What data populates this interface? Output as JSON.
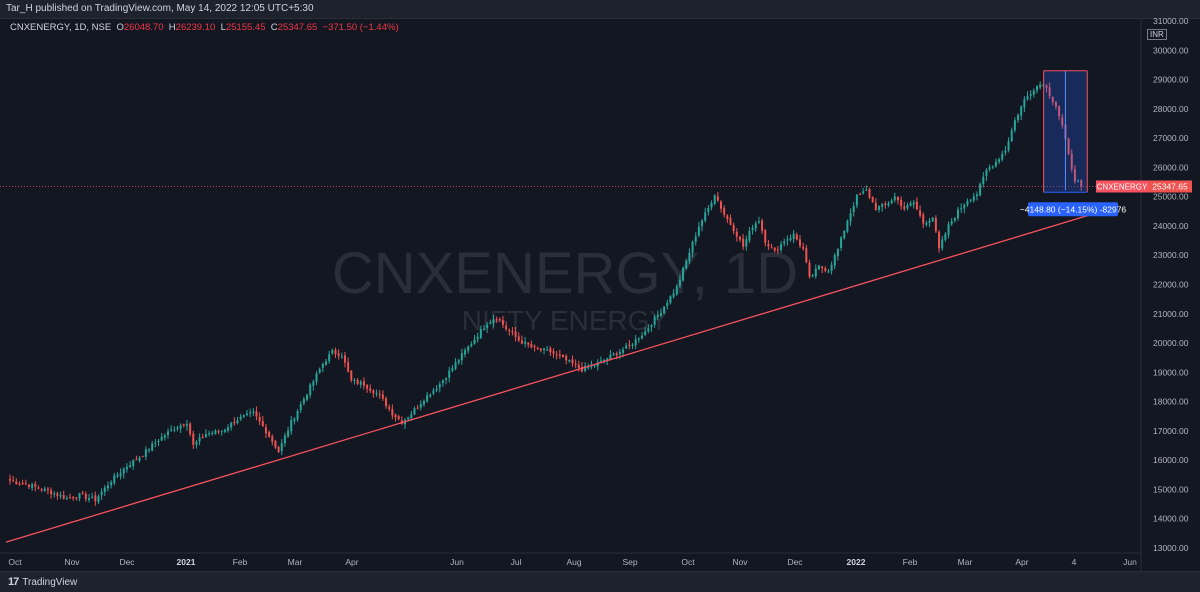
{
  "header": {
    "publisher": "Tar_H published on TradingView.com, May 14, 2022 12:05 UTC+5:30"
  },
  "legend": {
    "symbol": "CNXENERGY, 1D, NSE",
    "o_label": "O",
    "o": "26048.70",
    "h_label": "H",
    "h": "26239.10",
    "l_label": "L",
    "l": "25155.45",
    "c_label": "C",
    "c": "25347.65",
    "change": "−371.50 (−1.44%)"
  },
  "watermark": {
    "title": "CNXENERGY, 1D",
    "subtitle": "NIFTY ENERGY"
  },
  "footer": {
    "brand": "TradingView"
  },
  "colors": {
    "up": "#26a69a",
    "down": "#ef5350",
    "trend": "#f7525f",
    "measure": "#2962ff",
    "bg": "#131722"
  },
  "chart_data": {
    "type": "candlestick",
    "currency": "INR",
    "ylim": [
      13000,
      31000
    ],
    "y_ticks": [
      13000,
      14000,
      15000,
      16000,
      17000,
      18000,
      19000,
      20000,
      21000,
      22000,
      23000,
      24000,
      25000,
      26000,
      27000,
      28000,
      29000,
      30000,
      31000
    ],
    "x_ticks": [
      "Oct",
      "Nov",
      "Dec",
      "2021",
      "Feb",
      "Mar",
      "Apr",
      "Jun",
      "Jul",
      "Aug",
      "Sep",
      "Oct",
      "Nov",
      "Dec",
      "2022",
      "Feb",
      "Mar",
      "Apr",
      "4",
      "Jun"
    ],
    "keypoints": [
      [
        0,
        15300
      ],
      [
        6,
        15150
      ],
      [
        12,
        14950
      ],
      [
        18,
        14700
      ],
      [
        22,
        14800
      ],
      [
        27,
        14650
      ],
      [
        32,
        15300
      ],
      [
        37,
        15800
      ],
      [
        42,
        16200
      ],
      [
        47,
        16700
      ],
      [
        52,
        17100
      ],
      [
        56,
        17300
      ],
      [
        58,
        16500
      ],
      [
        62,
        16900
      ],
      [
        67,
        17000
      ],
      [
        72,
        17400
      ],
      [
        77,
        17600
      ],
      [
        81,
        17000
      ],
      [
        85,
        16300
      ],
      [
        89,
        17300
      ],
      [
        94,
        18300
      ],
      [
        99,
        19300
      ],
      [
        102,
        19700
      ],
      [
        105,
        19600
      ],
      [
        108,
        18700
      ],
      [
        112,
        18600
      ],
      [
        117,
        18200
      ],
      [
        121,
        17600
      ],
      [
        124,
        17300
      ],
      [
        127,
        17600
      ],
      [
        131,
        18100
      ],
      [
        136,
        18600
      ],
      [
        141,
        19300
      ],
      [
        146,
        20000
      ],
      [
        151,
        20700
      ],
      [
        154,
        20900
      ],
      [
        157,
        20500
      ],
      [
        161,
        20100
      ],
      [
        166,
        19800
      ],
      [
        171,
        19700
      ],
      [
        176,
        19400
      ],
      [
        181,
        19100
      ],
      [
        186,
        19300
      ],
      [
        191,
        19600
      ],
      [
        196,
        19900
      ],
      [
        201,
        20400
      ],
      [
        206,
        21100
      ],
      [
        211,
        21900
      ],
      [
        215,
        23100
      ],
      [
        218,
        24000
      ],
      [
        221,
        24600
      ],
      [
        223,
        25100
      ],
      [
        226,
        24400
      ],
      [
        229,
        23900
      ],
      [
        232,
        23300
      ],
      [
        235,
        24000
      ],
      [
        237,
        24200
      ],
      [
        239,
        23500
      ],
      [
        242,
        23100
      ],
      [
        245,
        23500
      ],
      [
        248,
        23700
      ],
      [
        251,
        23200
      ],
      [
        253,
        22200
      ],
      [
        256,
        22600
      ],
      [
        259,
        22500
      ],
      [
        262,
        23200
      ],
      [
        265,
        24200
      ],
      [
        268,
        25000
      ],
      [
        271,
        25200
      ],
      [
        274,
        24600
      ],
      [
        277,
        24700
      ],
      [
        280,
        25000
      ],
      [
        283,
        24600
      ],
      [
        286,
        24800
      ],
      [
        289,
        24100
      ],
      [
        292,
        24300
      ],
      [
        294,
        23200
      ],
      [
        297,
        24000
      ],
      [
        300,
        24500
      ],
      [
        303,
        24900
      ],
      [
        306,
        25100
      ],
      [
        309,
        25900
      ],
      [
        312,
        26200
      ],
      [
        315,
        26600
      ],
      [
        318,
        27600
      ],
      [
        321,
        28300
      ],
      [
        324,
        28700
      ],
      [
        327,
        28900
      ],
      [
        329,
        28500
      ],
      [
        331,
        28100
      ],
      [
        333,
        27400
      ],
      [
        335,
        26400
      ],
      [
        337,
        25600
      ],
      [
        339,
        25350
      ]
    ],
    "last_close": 25347.65,
    "price_label": "CNXENERGY",
    "price_value": "25347.65",
    "trendline": {
      "from": [
        0,
        13200
      ],
      "to": [
        344,
        24450
      ]
    },
    "measurement": {
      "start": [
        329,
        29300
      ],
      "end": [
        339,
        25150
      ],
      "label": "−4148.80 (−14.15%) -82976"
    },
    "n_bars": 340
  }
}
